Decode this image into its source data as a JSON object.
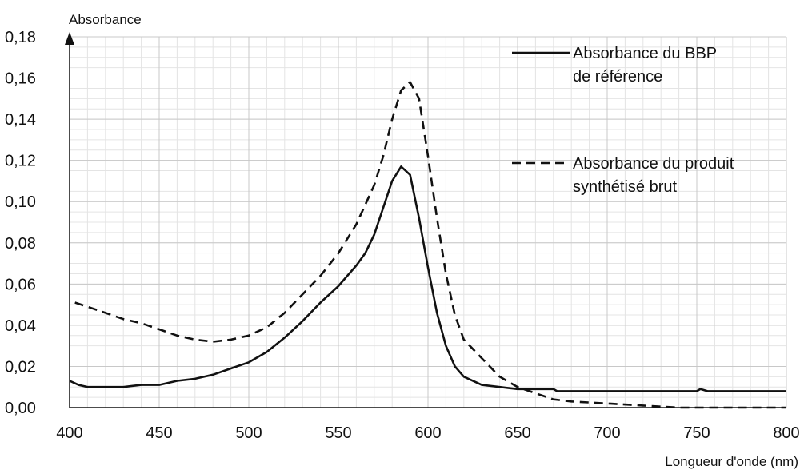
{
  "chart_data": {
    "type": "line",
    "ylabel": "Absorbance",
    "xlabel": "Longueur d'onde (nm)",
    "xlim": [
      400,
      800
    ],
    "ylim": [
      0,
      0.18
    ],
    "x_ticks": [
      "400",
      "450",
      "500",
      "550",
      "600",
      "650",
      "700",
      "750",
      "800"
    ],
    "y_ticks": [
      "0,00",
      "0,02",
      "0,04",
      "0,06",
      "0,08",
      "0,10",
      "0,12",
      "0,14",
      "0,16",
      "0,18"
    ],
    "grid": true,
    "legend_position": "top-right",
    "series": [
      {
        "name_lines": [
          "Absorbance du BBP",
          "de référence"
        ],
        "style": "solid",
        "points": [
          [
            400,
            0.013
          ],
          [
            405,
            0.011
          ],
          [
            410,
            0.01
          ],
          [
            420,
            0.01
          ],
          [
            430,
            0.01
          ],
          [
            440,
            0.011
          ],
          [
            450,
            0.011
          ],
          [
            460,
            0.013
          ],
          [
            470,
            0.014
          ],
          [
            480,
            0.016
          ],
          [
            490,
            0.019
          ],
          [
            500,
            0.022
          ],
          [
            510,
            0.027
          ],
          [
            520,
            0.034
          ],
          [
            530,
            0.042
          ],
          [
            540,
            0.051
          ],
          [
            550,
            0.059
          ],
          [
            560,
            0.069
          ],
          [
            565,
            0.075
          ],
          [
            570,
            0.084
          ],
          [
            575,
            0.097
          ],
          [
            580,
            0.11
          ],
          [
            585,
            0.117
          ],
          [
            590,
            0.113
          ],
          [
            595,
            0.092
          ],
          [
            600,
            0.068
          ],
          [
            605,
            0.046
          ],
          [
            610,
            0.03
          ],
          [
            615,
            0.02
          ],
          [
            620,
            0.015
          ],
          [
            630,
            0.011
          ],
          [
            640,
            0.01
          ],
          [
            650,
            0.009
          ],
          [
            670,
            0.009
          ],
          [
            672,
            0.008
          ],
          [
            700,
            0.008
          ],
          [
            750,
            0.008
          ],
          [
            752,
            0.009
          ],
          [
            756,
            0.008
          ],
          [
            800,
            0.008
          ]
        ]
      },
      {
        "name_lines": [
          "Absorbance du produit",
          "synthétisé brut"
        ],
        "style": "dashed",
        "points": [
          [
            403,
            0.051
          ],
          [
            410,
            0.049
          ],
          [
            420,
            0.046
          ],
          [
            430,
            0.043
          ],
          [
            440,
            0.041
          ],
          [
            450,
            0.038
          ],
          [
            460,
            0.035
          ],
          [
            470,
            0.033
          ],
          [
            480,
            0.032
          ],
          [
            490,
            0.033
          ],
          [
            500,
            0.035
          ],
          [
            510,
            0.039
          ],
          [
            520,
            0.046
          ],
          [
            530,
            0.055
          ],
          [
            540,
            0.064
          ],
          [
            550,
            0.075
          ],
          [
            560,
            0.089
          ],
          [
            570,
            0.108
          ],
          [
            575,
            0.122
          ],
          [
            580,
            0.14
          ],
          [
            585,
            0.154
          ],
          [
            590,
            0.158
          ],
          [
            595,
            0.15
          ],
          [
            600,
            0.122
          ],
          [
            605,
            0.092
          ],
          [
            610,
            0.065
          ],
          [
            615,
            0.045
          ],
          [
            620,
            0.033
          ],
          [
            630,
            0.024
          ],
          [
            640,
            0.015
          ],
          [
            650,
            0.01
          ],
          [
            660,
            0.007
          ],
          [
            670,
            0.004
          ],
          [
            680,
            0.003
          ],
          [
            700,
            0.002
          ],
          [
            720,
            0.001
          ],
          [
            740,
            0.0
          ],
          [
            760,
            0.0
          ],
          [
            780,
            0.0
          ],
          [
            800,
            0.0
          ]
        ]
      }
    ]
  }
}
